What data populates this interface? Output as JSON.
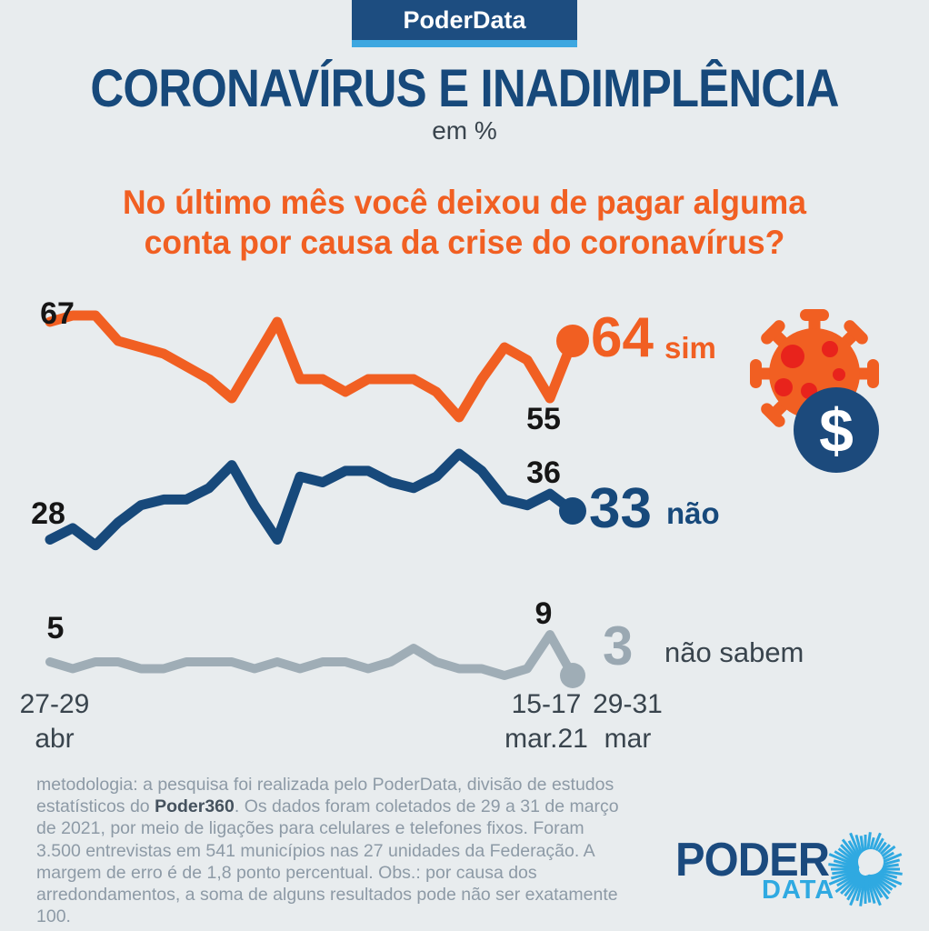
{
  "header": {
    "brand_badge": "PoderData",
    "title": "CORONAVÍRUS E INADIMPLÊNCIA",
    "subtitle": "em %",
    "question_line1": "No último mês você deixou de pagar alguma",
    "question_line2": "conta por causa da crise do coronavírus?"
  },
  "chart_data": {
    "type": "line",
    "title": "CORONAVÍRUS E INADIMPLÊNCIA",
    "unit": "%",
    "x_labels": [
      "27-29\nabr",
      "15-17\nmar.21",
      "29-31\nmar"
    ],
    "legend_position": "right-of-line-end",
    "grid": false,
    "series": [
      {
        "name": "sim",
        "color": "#f15f22",
        "start_label": "67",
        "prev_label": "55",
        "end_label": "64",
        "values": [
          67,
          68,
          68,
          64,
          63,
          62,
          60,
          58,
          55,
          61,
          67,
          58,
          58,
          56,
          58,
          58,
          58,
          56,
          52,
          58,
          63,
          61,
          55,
          64
        ]
      },
      {
        "name": "não",
        "color": "#17497b",
        "start_label": "28",
        "prev_label": "36",
        "end_label": "33",
        "values": [
          28,
          30,
          27,
          31,
          34,
          35,
          35,
          37,
          41,
          34,
          28,
          39,
          38,
          40,
          40,
          38,
          37,
          39,
          43,
          40,
          35,
          34,
          36,
          33
        ]
      },
      {
        "name": "não sabem",
        "color": "#9fadb6",
        "start_label": "5",
        "prev_label": "9",
        "end_label": "3",
        "values": [
          5,
          4,
          5,
          5,
          4,
          4,
          5,
          5,
          5,
          4,
          5,
          4,
          5,
          5,
          4,
          5,
          7,
          5,
          4,
          4,
          3,
          4,
          9,
          3
        ]
      }
    ]
  },
  "icons": {
    "dollar_symbol": "$"
  },
  "footer": {
    "methodology_prefix": "metodologia: a pesquisa foi realizada pelo PoderData, divisão de estudos estatísticos do ",
    "methodology_brand": "Poder360",
    "methodology_suffix": ". Os dados foram coletados de 29 a 31 de março de 2021, por meio de ligações para celulares e telefones fixos. Foram 3.500 entrevistas em 541 municípios nas 27 unidades da Federação. A margem de erro é de 1,8 ponto percentual. Obs.: por causa dos arredondamentos, a soma de alguns resultados pode não ser exatamente 100.",
    "logo_top": "PODER",
    "logo_bottom": "DATA"
  }
}
